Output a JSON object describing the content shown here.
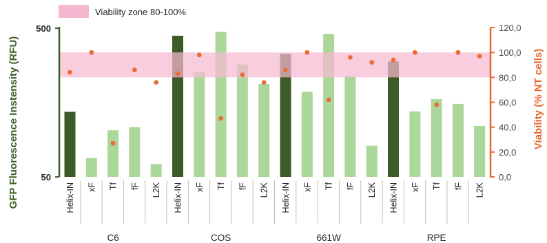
{
  "chart_data": {
    "type": "bar",
    "legend": {
      "label": "Viability zone 80-100%",
      "color": "#f6b8d1",
      "position": "top-left"
    },
    "left_axis": {
      "label": "GFP Fluorescence Instensity (RFU)",
      "scale": "log",
      "ylim": [
        50,
        500
      ],
      "ticks": [
        50,
        500
      ],
      "tick_labels": [
        "50",
        "500"
      ],
      "color": "#3a5f27"
    },
    "right_axis": {
      "label": "Viability (% NT cells)",
      "ylim": [
        0,
        120
      ],
      "ticks": [
        0,
        20,
        40,
        60,
        80,
        100,
        120
      ],
      "tick_labels": [
        "0,0",
        "20,0",
        "40,0",
        "60,0",
        "80,0",
        "100,0",
        "120,0"
      ],
      "color": "#e8672f"
    },
    "viability_zone": [
      80,
      100
    ],
    "groups": [
      {
        "name": "C6",
        "categories": [
          "Helix-IN",
          "xF",
          "Tf",
          "fF",
          "L2K"
        ]
      },
      {
        "name": "COS",
        "categories": [
          "Helix-IN",
          "xF",
          "Tf",
          "fF",
          "L2K"
        ]
      },
      {
        "name": "661W",
        "categories": [
          "Helix-IN",
          "xF",
          "Tf",
          "fF",
          "L2K"
        ]
      },
      {
        "name": "RPE",
        "categories": [
          "Helix-IN",
          "xF",
          "Tf",
          "fF",
          "L2K"
        ]
      }
    ],
    "series": [
      {
        "kind": "bar",
        "axis": "left",
        "values": [
          137,
          67,
          103,
          108,
          61,
          445,
          253,
          473,
          285,
          211,
          337,
          187,
          458,
          237,
          81,
          299,
          138,
          167,
          155,
          110
        ],
        "highlight": [
          "Helix-IN"
        ]
      },
      {
        "kind": "dots",
        "axis": "right",
        "values": [
          84,
          100,
          27,
          86,
          76,
          83,
          98,
          47,
          82,
          76,
          86,
          100,
          62,
          96,
          92,
          94,
          100,
          58,
          100,
          97
        ]
      }
    ],
    "colors": {
      "bar_dark": "#3d5a27",
      "bar_light": "#acd79b",
      "dot": "#eb6c35",
      "left_axis": "#3a5f27",
      "right_axis": "#e8672f"
    },
    "grid": false
  }
}
